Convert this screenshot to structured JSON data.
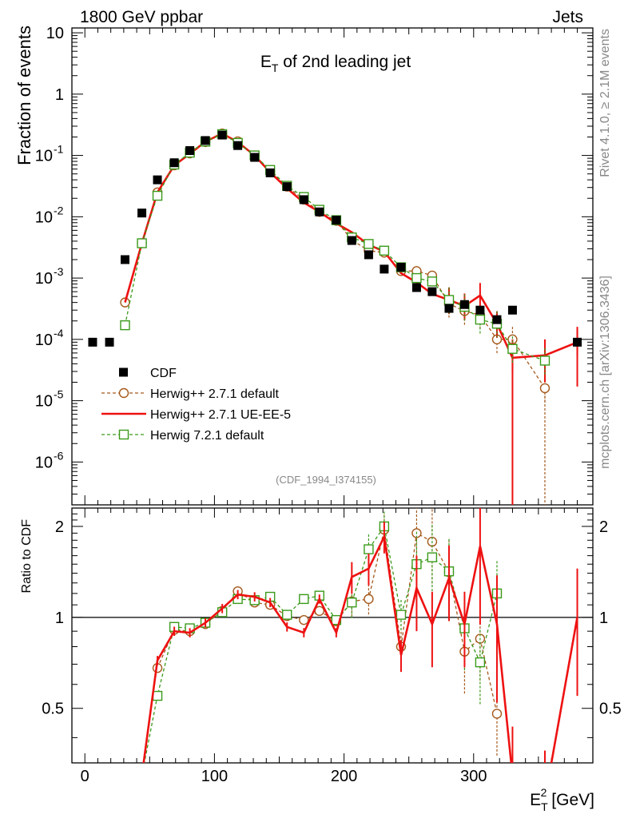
{
  "header": {
    "left": "1800 GeV ppbar",
    "right": "Jets"
  },
  "side_labels": {
    "rivet": "Rivet 4.1.0, ≥ 2.1M events",
    "mcplots": "mcplots.cern.ch [arXiv:1306.3436]"
  },
  "chart_data": {
    "type": "line",
    "title": "E_T of 2nd leading jet",
    "ylabel": "Fraction of events",
    "xlabel": "E_T^2 [GeV]",
    "ratio_ylabel": "Ratio to CDF",
    "watermark": "(CDF_1994_I374155)",
    "xlim": [
      -10,
      392
    ],
    "ylim": [
      2e-07,
      12
    ],
    "ratio_ylim": [
      0.33,
      2.3
    ],
    "x_ticks": [
      0,
      100,
      200,
      300
    ],
    "ratio_ticks": [
      0.5,
      1,
      2
    ],
    "legend": [
      {
        "label": "CDF",
        "key": "cdf"
      },
      {
        "label": "Herwig++ 2.7.1 default",
        "key": "h271"
      },
      {
        "label": "Herwig++ 2.7.1 UE-EE-5",
        "key": "ue"
      },
      {
        "label": "Herwig 7.2.1 default",
        "key": "h7"
      }
    ],
    "colors": {
      "cdf": "#000000",
      "h271": "#a5591c",
      "ue": "#ee1111",
      "h7": "#3a9a1a"
    },
    "cdf": {
      "x": [
        6,
        19,
        31,
        44,
        56,
        69,
        81,
        93,
        106,
        118,
        131,
        143,
        156,
        169,
        181,
        194,
        206,
        219,
        231,
        244,
        256,
        268,
        281,
        293,
        305,
        318,
        330,
        380
      ],
      "y": [
        9e-05,
        9e-05,
        0.002,
        0.0115,
        0.04,
        0.076,
        0.12,
        0.175,
        0.215,
        0.145,
        0.093,
        0.052,
        0.031,
        0.019,
        0.012,
        0.0088,
        0.0041,
        0.0024,
        0.0014,
        0.0015,
        0.0007,
        0.0006,
        0.00032,
        0.00037,
        0.0003,
        0.00021,
        0.0003,
        9e-05
      ]
    },
    "series": [
      {
        "name": "Herwig++ 2.7.1 default",
        "key": "h271",
        "marker": "circle",
        "dashed": true,
        "x": [
          31,
          44,
          56,
          69,
          81,
          93,
          106,
          118,
          131,
          143,
          156,
          169,
          181,
          194,
          206,
          219,
          231,
          244,
          256,
          268,
          281,
          293,
          305,
          318,
          330,
          355
        ],
        "y": [
          0.0004,
          0.0037,
          0.025,
          0.069,
          0.108,
          0.165,
          0.228,
          0.17,
          0.1,
          0.055,
          0.031,
          0.019,
          0.012,
          0.0086,
          0.0042,
          0.0028,
          0.0026,
          0.0013,
          0.0013,
          0.0011,
          0.00038,
          0.00029,
          0.00025,
          0.0001,
          0.0001,
          1.6e-05
        ]
      },
      {
        "name": "Herwig++ 2.7.1 UE-EE-5",
        "key": "ue",
        "marker": "none",
        "dashed": false,
        "x": [
          31,
          44,
          56,
          69,
          81,
          93,
          106,
          118,
          131,
          143,
          156,
          169,
          181,
          194,
          206,
          219,
          231,
          244,
          256,
          268,
          281,
          293,
          305,
          318,
          330,
          355,
          380
        ],
        "y": [
          0.0004,
          0.0037,
          0.025,
          0.069,
          0.106,
          0.168,
          0.228,
          0.165,
          0.1,
          0.053,
          0.029,
          0.017,
          0.012,
          0.0078,
          0.0056,
          0.0035,
          0.0027,
          0.0012,
          0.00085,
          0.00055,
          0.00044,
          0.00035,
          0.00052,
          0.00018,
          5e-05,
          5.5e-05,
          9e-05
        ]
      },
      {
        "name": "Herwig 7.2.1 default",
        "key": "h7",
        "marker": "square",
        "dashed": true,
        "x": [
          31,
          44,
          56,
          69,
          81,
          93,
          106,
          118,
          131,
          143,
          156,
          169,
          181,
          194,
          206,
          219,
          231,
          244,
          256,
          268,
          281,
          293,
          305,
          318,
          330,
          355
        ],
        "y": [
          0.00017,
          0.0037,
          0.022,
          0.071,
          0.111,
          0.168,
          0.222,
          0.16,
          0.1,
          0.058,
          0.032,
          0.021,
          0.013,
          0.0088,
          0.0046,
          0.0036,
          0.0028,
          0.0015,
          0.001,
          0.00088,
          0.00044,
          0.00034,
          0.00021,
          0.00018,
          7e-05,
          4.5e-05
        ]
      }
    ],
    "ratio": {
      "h271": {
        "x": [
          56,
          69,
          81,
          93,
          106,
          118,
          131,
          143,
          156,
          169,
          181,
          194,
          206,
          219,
          231,
          244,
          256,
          268,
          281,
          293,
          305,
          318
        ],
        "y": [
          0.68,
          0.91,
          0.9,
          0.95,
          1.05,
          1.22,
          1.12,
          1.1,
          1.01,
          0.98,
          1.05,
          0.97,
          1.13,
          1.15,
          1.95,
          0.8,
          1.9,
          1.78,
          1.41,
          0.77,
          0.85,
          0.48
        ]
      },
      "ue": {
        "x": [
          44,
          56,
          69,
          81,
          93,
          106,
          118,
          131,
          143,
          156,
          169,
          181,
          194,
          206,
          219,
          231,
          244,
          256,
          268,
          281,
          293,
          305,
          318,
          330,
          355,
          380
        ],
        "y": [
          0.3,
          0.72,
          0.9,
          0.89,
          0.96,
          1.07,
          1.19,
          1.17,
          1.12,
          0.93,
          0.89,
          1.15,
          0.89,
          1.36,
          1.45,
          1.85,
          0.75,
          1.25,
          0.95,
          1.35,
          0.95,
          1.72,
          0.95,
          0.3,
          0.25,
          1.0
        ]
      },
      "h7": {
        "x": [
          44,
          56,
          69,
          81,
          93,
          106,
          118,
          131,
          143,
          156,
          169,
          181,
          194,
          206,
          219,
          231,
          244,
          256,
          268,
          281,
          293,
          305,
          318
        ],
        "y": [
          0.3,
          0.55,
          0.93,
          0.92,
          0.96,
          1.04,
          1.15,
          1.14,
          1.17,
          1.02,
          1.15,
          1.18,
          0.98,
          1.12,
          1.68,
          2.0,
          1.02,
          1.5,
          1.58,
          1.42,
          0.92,
          0.71,
          1.2
        ]
      }
    }
  }
}
